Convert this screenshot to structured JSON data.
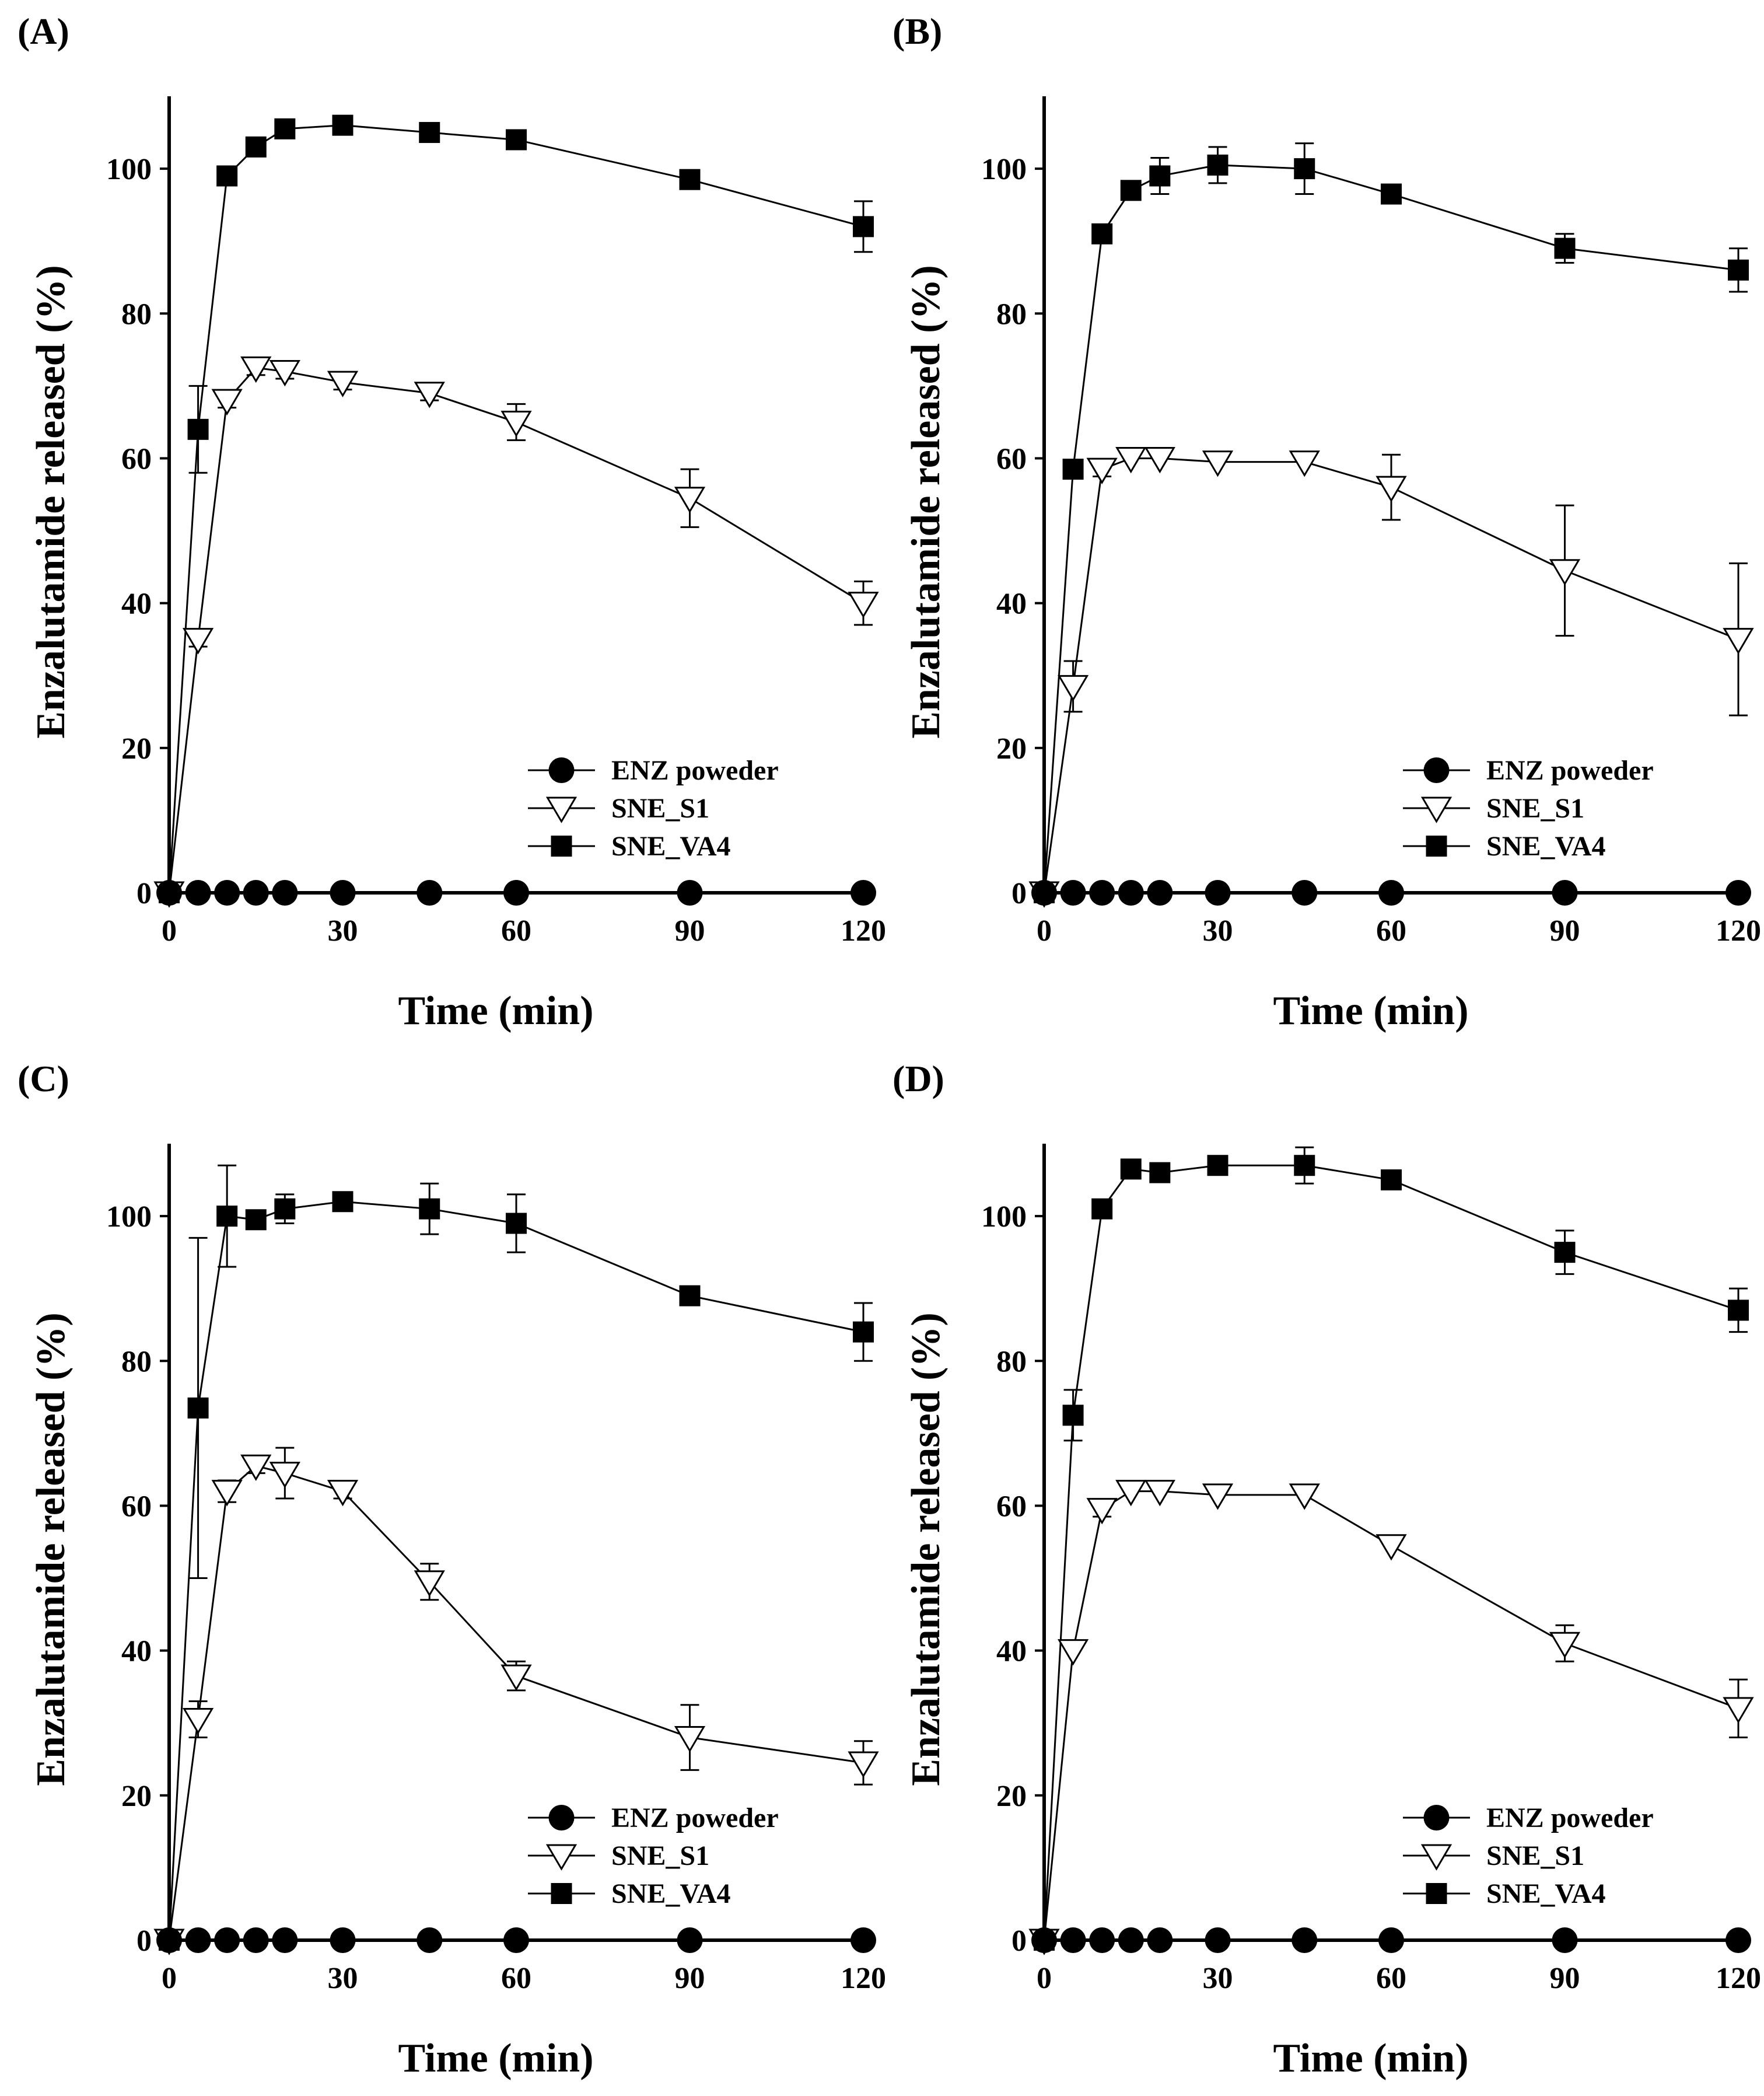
{
  "figure_labels": [
    "(A)",
    "(B)",
    "(C)",
    "(D)"
  ],
  "chart_data": [
    {
      "type": "line",
      "panel_label": "(A)",
      "xlabel": "Time (min)",
      "ylabel": "Enzalutamide released (%)",
      "xlim": [
        0,
        120
      ],
      "ylim": [
        0,
        110
      ],
      "xticks": [
        0,
        30,
        60,
        90,
        120
      ],
      "yticks": [
        0,
        20,
        40,
        60,
        80,
        100
      ],
      "legend_position": "bottom-right",
      "series": [
        {
          "name": "ENZ poweder",
          "marker": "circle-filled",
          "x": [
            0,
            5,
            10,
            15,
            20,
            30,
            45,
            60,
            90,
            120
          ],
          "values": [
            0,
            0,
            0,
            0,
            0,
            0,
            0,
            0,
            0,
            0
          ],
          "errors": [
            0,
            0,
            0,
            0,
            0,
            0,
            0,
            0,
            0,
            0
          ]
        },
        {
          "name": "SNE_S1",
          "marker": "triangle-down-open",
          "x": [
            0,
            5,
            10,
            15,
            20,
            30,
            45,
            60,
            90,
            120
          ],
          "values": [
            0,
            35,
            68,
            72.5,
            72,
            70.5,
            69,
            65,
            54.5,
            40
          ],
          "errors": [
            0,
            1,
            1,
            1,
            1,
            1,
            1,
            2.5,
            4,
            3
          ]
        },
        {
          "name": "SNE_VA4",
          "marker": "square-filled",
          "x": [
            0,
            5,
            10,
            15,
            20,
            30,
            45,
            60,
            90,
            120
          ],
          "values": [
            0,
            64,
            99,
            103,
            105.5,
            106,
            105,
            104,
            98.5,
            92
          ],
          "errors": [
            0,
            6,
            0.5,
            0.5,
            0.5,
            0.5,
            0.5,
            0.5,
            0.5,
            3.5
          ]
        }
      ]
    },
    {
      "type": "line",
      "panel_label": "(B)",
      "xlabel": "Time (min)",
      "ylabel": "Enzalutamide released (%)",
      "xlim": [
        0,
        120
      ],
      "ylim": [
        0,
        110
      ],
      "xticks": [
        0,
        30,
        60,
        90,
        120
      ],
      "yticks": [
        0,
        20,
        40,
        60,
        80,
        100
      ],
      "legend_position": "bottom-right",
      "series": [
        {
          "name": "ENZ poweder",
          "marker": "circle-filled",
          "x": [
            0,
            5,
            10,
            15,
            20,
            30,
            45,
            60,
            90,
            120
          ],
          "values": [
            0,
            0,
            0,
            0,
            0,
            0,
            0,
            0,
            0,
            0
          ],
          "errors": [
            0,
            0,
            0,
            0,
            0,
            0,
            0,
            0,
            0,
            0
          ]
        },
        {
          "name": "SNE_S1",
          "marker": "triangle-down-open",
          "x": [
            0,
            5,
            10,
            15,
            20,
            30,
            45,
            60,
            90,
            120
          ],
          "values": [
            0,
            28.5,
            58.5,
            60,
            60,
            59.5,
            59.5,
            56,
            44.5,
            35
          ],
          "errors": [
            0,
            3.5,
            1,
            0.5,
            0.5,
            0.5,
            0.5,
            4.5,
            9,
            10.5
          ]
        },
        {
          "name": "SNE_VA4",
          "marker": "square-filled",
          "x": [
            0,
            5,
            10,
            15,
            20,
            30,
            45,
            60,
            90,
            120
          ],
          "values": [
            0,
            58.5,
            91,
            97,
            99,
            100.5,
            100,
            96.5,
            89,
            86
          ],
          "errors": [
            0,
            0.5,
            0.5,
            0.5,
            2.5,
            2.5,
            3.5,
            0.5,
            2,
            3
          ]
        }
      ]
    },
    {
      "type": "line",
      "panel_label": "(C)",
      "xlabel": "Time (min)",
      "ylabel": "Enzalutamide released (%)",
      "xlim": [
        0,
        120
      ],
      "ylim": [
        0,
        110
      ],
      "xticks": [
        0,
        30,
        60,
        90,
        120
      ],
      "yticks": [
        0,
        20,
        40,
        60,
        80,
        100
      ],
      "legend_position": "bottom-right",
      "series": [
        {
          "name": "ENZ poweder",
          "marker": "circle-filled",
          "x": [
            0,
            5,
            10,
            15,
            20,
            30,
            45,
            60,
            90,
            120
          ],
          "values": [
            0,
            0,
            0,
            0,
            0,
            0,
            0,
            0,
            0,
            0
          ],
          "errors": [
            0,
            0,
            0,
            0,
            0,
            0,
            0,
            0,
            0,
            0
          ]
        },
        {
          "name": "SNE_S1",
          "marker": "triangle-down-open",
          "x": [
            0,
            5,
            10,
            15,
            20,
            30,
            45,
            60,
            90,
            120
          ],
          "values": [
            0,
            30.5,
            62,
            65.5,
            64.5,
            62,
            49.5,
            36.5,
            28,
            24.5
          ],
          "errors": [
            0,
            2.5,
            1.5,
            1,
            3.5,
            1,
            2.5,
            2,
            4.5,
            3
          ]
        },
        {
          "name": "SNE_VA4",
          "marker": "square-filled",
          "x": [
            0,
            5,
            10,
            15,
            20,
            30,
            45,
            60,
            90,
            120
          ],
          "values": [
            0,
            73.5,
            100,
            99.5,
            101,
            102,
            101,
            99,
            89,
            84
          ],
          "errors": [
            0,
            23.5,
            7,
            0.5,
            2,
            0.5,
            3.5,
            4,
            0.5,
            4
          ]
        }
      ]
    },
    {
      "type": "line",
      "panel_label": "(D)",
      "xlabel": "Time (min)",
      "ylabel": "Enzalutamide released (%)",
      "xlim": [
        0,
        120
      ],
      "ylim": [
        0,
        110
      ],
      "xticks": [
        0,
        30,
        60,
        90,
        120
      ],
      "yticks": [
        0,
        20,
        40,
        60,
        80,
        100
      ],
      "legend_position": "bottom-right",
      "series": [
        {
          "name": "ENZ poweder",
          "marker": "circle-filled",
          "x": [
            0,
            5,
            10,
            15,
            20,
            30,
            45,
            60,
            90,
            120
          ],
          "values": [
            0,
            0,
            0,
            0,
            0,
            0,
            0,
            0,
            0,
            0
          ],
          "errors": [
            0,
            0,
            0,
            0,
            0,
            0,
            0,
            0,
            0,
            0
          ]
        },
        {
          "name": "SNE_S1",
          "marker": "triangle-down-open",
          "x": [
            0,
            5,
            10,
            15,
            20,
            30,
            45,
            60,
            90,
            120
          ],
          "values": [
            0,
            40,
            59.5,
            62,
            62,
            61.5,
            61.5,
            54.5,
            41,
            32
          ],
          "errors": [
            0,
            0.5,
            1,
            0.5,
            0.5,
            0.5,
            0.5,
            0.5,
            2.5,
            4
          ]
        },
        {
          "name": "SNE_VA4",
          "marker": "square-filled",
          "x": [
            0,
            5,
            10,
            15,
            20,
            30,
            45,
            60,
            90,
            120
          ],
          "values": [
            0,
            72.5,
            101,
            106.5,
            106,
            107,
            107,
            105,
            95,
            87
          ],
          "errors": [
            0,
            3.5,
            0.5,
            0.5,
            0.5,
            0.5,
            2.5,
            0.5,
            3,
            3
          ]
        }
      ]
    }
  ]
}
